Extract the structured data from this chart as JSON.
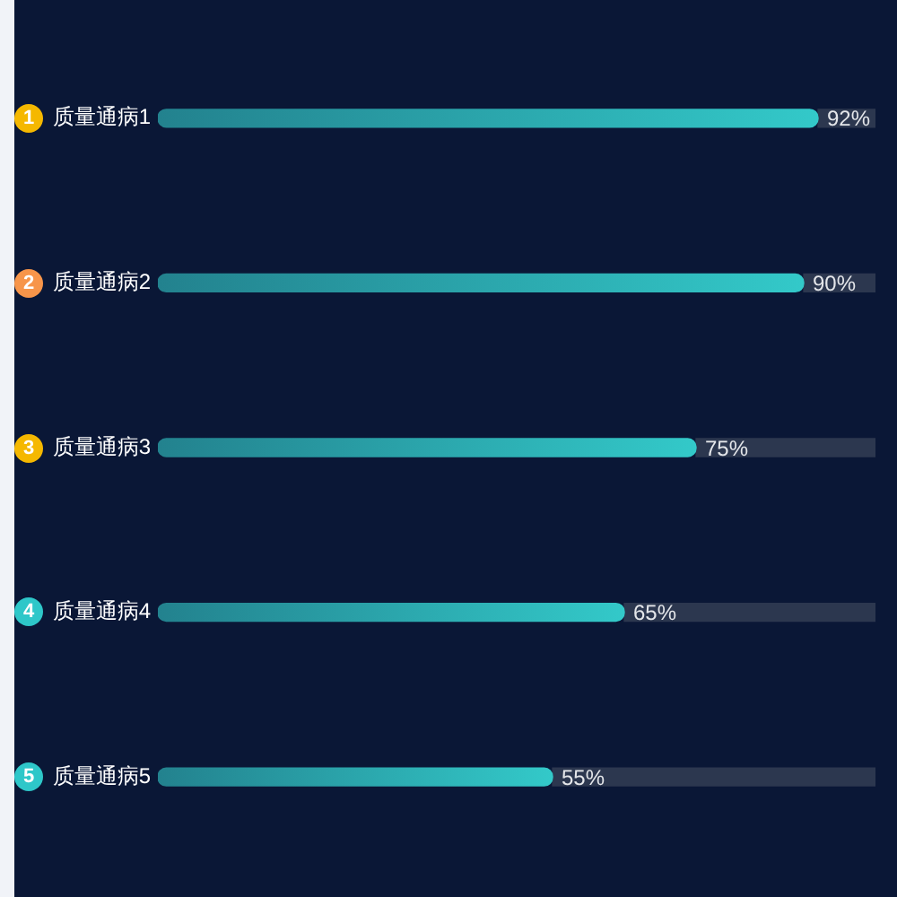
{
  "chart_data": {
    "type": "bar",
    "orientation": "horizontal",
    "stacked": true,
    "categories": [
      "质量通病1",
      "质量通病2",
      "质量通病3",
      "质量通病4",
      "质量通病5"
    ],
    "series": [
      {
        "color": "#33c9c9",
        "values": [
          92,
          90,
          75,
          65,
          55
        ],
        "value_labels": [
          "92%",
          "90%",
          "75%",
          "65%",
          "55%"
        ]
      },
      {
        "color": "#2c374f",
        "values": [
          8,
          10,
          25,
          35,
          45
        ]
      }
    ],
    "xlim": [
      0,
      100
    ],
    "tick_labels": "y",
    "annotations": [
      "1",
      "2",
      "3",
      "4",
      "5"
    ]
  }
}
